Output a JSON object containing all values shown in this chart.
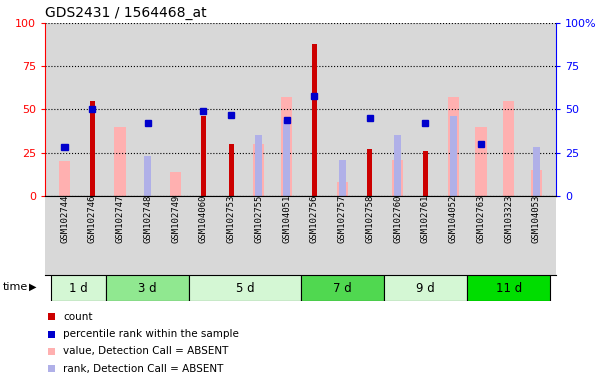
{
  "title": "GDS2431 / 1564468_at",
  "samples": [
    "GSM102744",
    "GSM102746",
    "GSM102747",
    "GSM102748",
    "GSM102749",
    "GSM104060",
    "GSM102753",
    "GSM102755",
    "GSM104051",
    "GSM102756",
    "GSM102757",
    "GSM102758",
    "GSM102760",
    "GSM102761",
    "GSM104052",
    "GSM102763",
    "GSM103323",
    "GSM104053"
  ],
  "count": [
    0,
    55,
    0,
    0,
    0,
    46,
    30,
    0,
    0,
    88,
    0,
    27,
    0,
    26,
    0,
    0,
    0,
    0
  ],
  "percentile_rank": [
    28,
    50,
    0,
    42,
    0,
    49,
    47,
    0,
    44,
    58,
    0,
    45,
    0,
    42,
    0,
    30,
    0,
    0
  ],
  "value_absent": [
    20,
    0,
    40,
    0,
    14,
    0,
    0,
    30,
    57,
    0,
    8,
    0,
    21,
    0,
    57,
    40,
    55,
    15
  ],
  "rank_absent": [
    0,
    0,
    0,
    23,
    0,
    0,
    0,
    35,
    44,
    0,
    21,
    0,
    35,
    0,
    46,
    0,
    0,
    28
  ],
  "time_groups": [
    {
      "label": "1 d",
      "start": 0,
      "end": 2,
      "color": "#d4f7d4"
    },
    {
      "label": "3 d",
      "start": 2,
      "end": 5,
      "color": "#90e890"
    },
    {
      "label": "5 d",
      "start": 5,
      "end": 9,
      "color": "#d4f7d4"
    },
    {
      "label": "7 d",
      "start": 9,
      "end": 12,
      "color": "#50d850"
    },
    {
      "label": "9 d",
      "start": 12,
      "end": 15,
      "color": "#d4f7d4"
    },
    {
      "label": "11 d",
      "start": 15,
      "end": 18,
      "color": "#00dd00"
    }
  ],
  "count_color": "#cc0000",
  "percentile_color": "#0000cc",
  "value_absent_color": "#ffb0b0",
  "rank_absent_color": "#b0b0e8",
  "ylim_left": [
    0,
    100
  ],
  "bg_color": "#d8d8d8",
  "left_yticks": [
    0,
    25,
    50,
    75,
    100
  ],
  "right_ytick_labels": [
    "0",
    "25",
    "50",
    "75",
    "100%"
  ]
}
